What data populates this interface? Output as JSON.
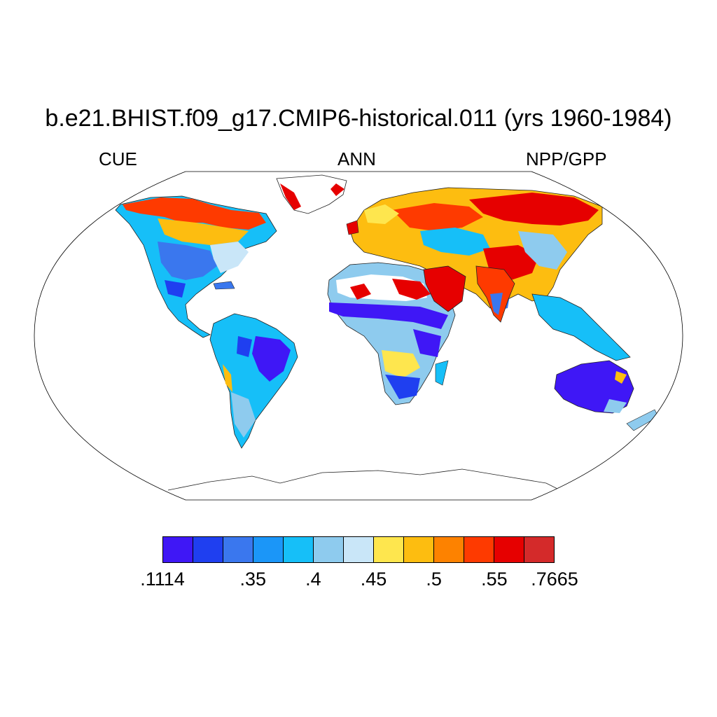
{
  "title": "b.e21.BHIST.f09_g17.CMIP6-historical.011 (yrs 1960-1984)",
  "subtitle_left": "CUE",
  "subtitle_center": "ANN",
  "subtitle_right": "NPP/GPP",
  "map": {
    "projection": "Robinson",
    "variable": "CUE",
    "colors": {
      "outline": "#000000",
      "land_no_data": "#ffffff"
    }
  },
  "colorbar": {
    "colors": [
      "#3f17f6",
      "#1f3ff0",
      "#3a77ee",
      "#1b96f8",
      "#16bff8",
      "#8ecbee",
      "#c9e6f8",
      "#fee64e",
      "#fdbd10",
      "#fd8200",
      "#fe3a00",
      "#e60000",
      "#d42a2a"
    ],
    "labels": [
      ".1114",
      ".35",
      ".4",
      ".45",
      ".5",
      ".55",
      ".7665"
    ]
  }
}
